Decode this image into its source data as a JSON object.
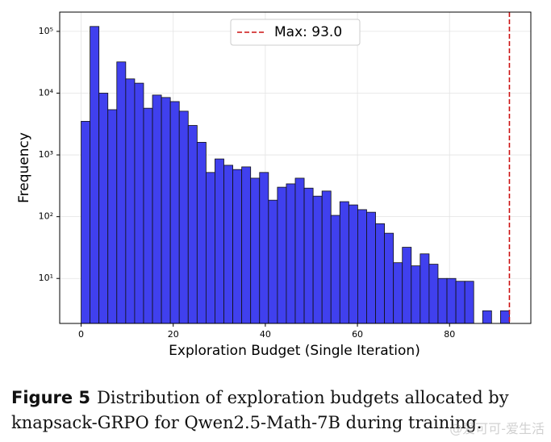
{
  "chart_data": {
    "type": "histogram",
    "xlabel": "Exploration Budget (Single Iteration)",
    "ylabel": "Frequency",
    "bins": [
      0,
      1.9375,
      3.875,
      5.8125,
      7.75,
      9.6875,
      11.625,
      13.5625,
      15.5,
      17.4375,
      19.375,
      21.3125,
      23.25,
      25.1875,
      27.125,
      29.0625,
      31,
      32.9375,
      34.875,
      36.8125,
      38.75,
      40.6875,
      42.625,
      44.5625,
      46.5,
      48.4375,
      50.375,
      52.3125,
      54.25,
      56.1875,
      58.125,
      60.0625,
      62,
      63.9375,
      65.875,
      67.8125,
      69.75,
      71.6875,
      73.625,
      75.5625,
      77.5,
      79.4375,
      81.375,
      83.3125,
      85.25,
      87.1875,
      89.125,
      91.0625,
      93
    ],
    "values": [
      3500,
      120000,
      10000,
      5400,
      32000,
      17000,
      14500,
      5700,
      9300,
      8500,
      7300,
      5100,
      3000,
      1600,
      520,
      860,
      680,
      580,
      640,
      420,
      520,
      185,
      300,
      340,
      420,
      290,
      215,
      260,
      105,
      175,
      155,
      130,
      118,
      77,
      54,
      18,
      32,
      16,
      25,
      17,
      10,
      10,
      9,
      9,
      0,
      3,
      0,
      3
    ],
    "color": "#4040ee",
    "xlim": [
      -4.65,
      97.65
    ],
    "xticks": [
      0,
      20,
      40,
      60,
      80
    ],
    "ylim": [
      1.87,
      205000
    ],
    "yscale": "log",
    "yticks": [
      {
        "value": 10,
        "label": "10¹"
      },
      {
        "value": 100,
        "label": "10²"
      },
      {
        "value": 1000,
        "label": "10³"
      },
      {
        "value": 10000,
        "label": "10⁴"
      },
      {
        "value": 100000,
        "label": "10⁵"
      }
    ],
    "grid": true,
    "vline": {
      "x": 93.0,
      "label": "Max: 93.0",
      "color": "#cc1111"
    },
    "legend": "upper center"
  },
  "caption": {
    "label": "Figure 5",
    "text": "Distribution of exploration budgets allocated by knapsack-GRPO for Qwen2.5-Math-7B during training."
  },
  "watermark": "@爱可可-爱生活"
}
